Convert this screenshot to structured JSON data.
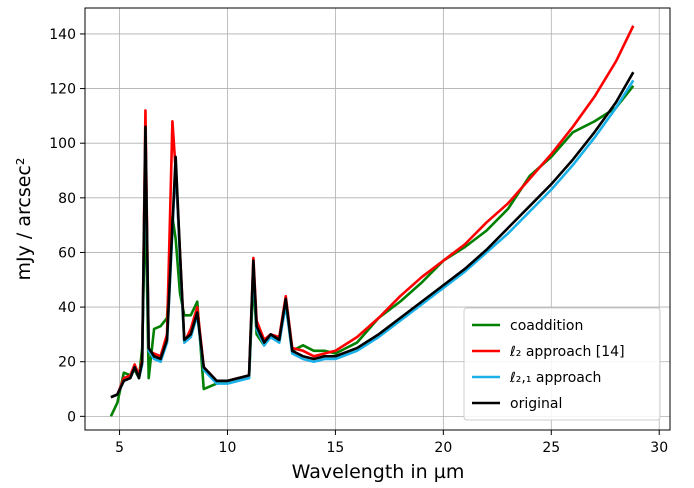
{
  "chart_data": {
    "type": "line",
    "x_label": "Wavelength in µm",
    "y_label": "mJy / arcsec²",
    "x": [
      4.6,
      4.9,
      5.2,
      5.5,
      5.7,
      5.9,
      6.05,
      6.2,
      6.35,
      6.6,
      6.9,
      7.2,
      7.45,
      7.6,
      7.8,
      8.0,
      8.3,
      8.6,
      8.9,
      9.5,
      10.0,
      10.5,
      11.0,
      11.2,
      11.35,
      11.7,
      12.0,
      12.4,
      12.7,
      13.0,
      13.5,
      14.0,
      14.5,
      15,
      16,
      17,
      18,
      19,
      20,
      21,
      22,
      23,
      24,
      25,
      26,
      27,
      28,
      28.8
    ],
    "series": [
      {
        "name": "coaddition",
        "color": "#008000",
        "values": [
          0,
          5,
          16,
          15,
          17,
          14,
          25,
          80,
          14,
          32,
          33,
          36,
          73,
          65,
          45,
          37,
          37,
          42,
          10,
          12,
          13,
          14,
          14,
          50,
          30,
          26,
          30,
          28,
          41,
          24,
          26,
          24,
          24,
          23,
          27,
          36,
          42,
          49,
          57,
          62,
          68,
          76,
          88,
          95,
          104,
          108,
          113,
          121
        ]
      },
      {
        "name": "ℓ₂ approach [14]",
        "color": "#ff0000",
        "values": [
          7,
          8,
          14,
          15,
          19,
          15,
          21,
          112,
          24,
          23,
          22,
          30,
          108,
          90,
          60,
          27,
          32,
          40,
          18,
          13,
          13,
          14,
          15,
          58,
          35,
          28,
          30,
          29,
          44,
          25,
          24,
          22,
          23,
          24,
          29,
          36,
          44,
          51,
          57,
          63,
          71,
          78,
          87,
          96,
          106,
          117,
          130,
          143
        ]
      },
      {
        "name": "ℓ₂,₁ approach",
        "color": "#1ab0e8",
        "values": [
          7,
          8,
          13,
          14,
          18,
          14,
          19,
          104,
          24,
          21,
          20,
          27,
          68,
          93,
          58,
          27,
          29,
          37,
          17,
          12,
          12,
          13,
          14,
          55,
          32,
          26,
          29,
          27,
          41,
          23,
          21,
          20,
          21,
          21,
          24,
          29,
          35,
          41,
          47,
          53,
          60,
          67,
          75,
          83,
          92,
          102,
          113,
          123
        ]
      },
      {
        "name": "original",
        "color": "#000000",
        "values": [
          7,
          8,
          13,
          14,
          18,
          14,
          20,
          106,
          25,
          22,
          21,
          28,
          70,
          95,
          60,
          28,
          30,
          38,
          18,
          13,
          13,
          14,
          15,
          57,
          33,
          27,
          30,
          28,
          43,
          24,
          22,
          21,
          22,
          22,
          25,
          30,
          36,
          42,
          48,
          54,
          61,
          69,
          77,
          85,
          94,
          104,
          115,
          126
        ]
      }
    ],
    "xlim": [
      3.4,
      30.5
    ],
    "ylim": [
      -5,
      149.5
    ],
    "xticks": [
      5,
      10,
      15,
      20,
      25,
      30
    ],
    "yticks": [
      0,
      20,
      40,
      60,
      80,
      100,
      120,
      140
    ],
    "grid": true,
    "legend": "lower right"
  }
}
